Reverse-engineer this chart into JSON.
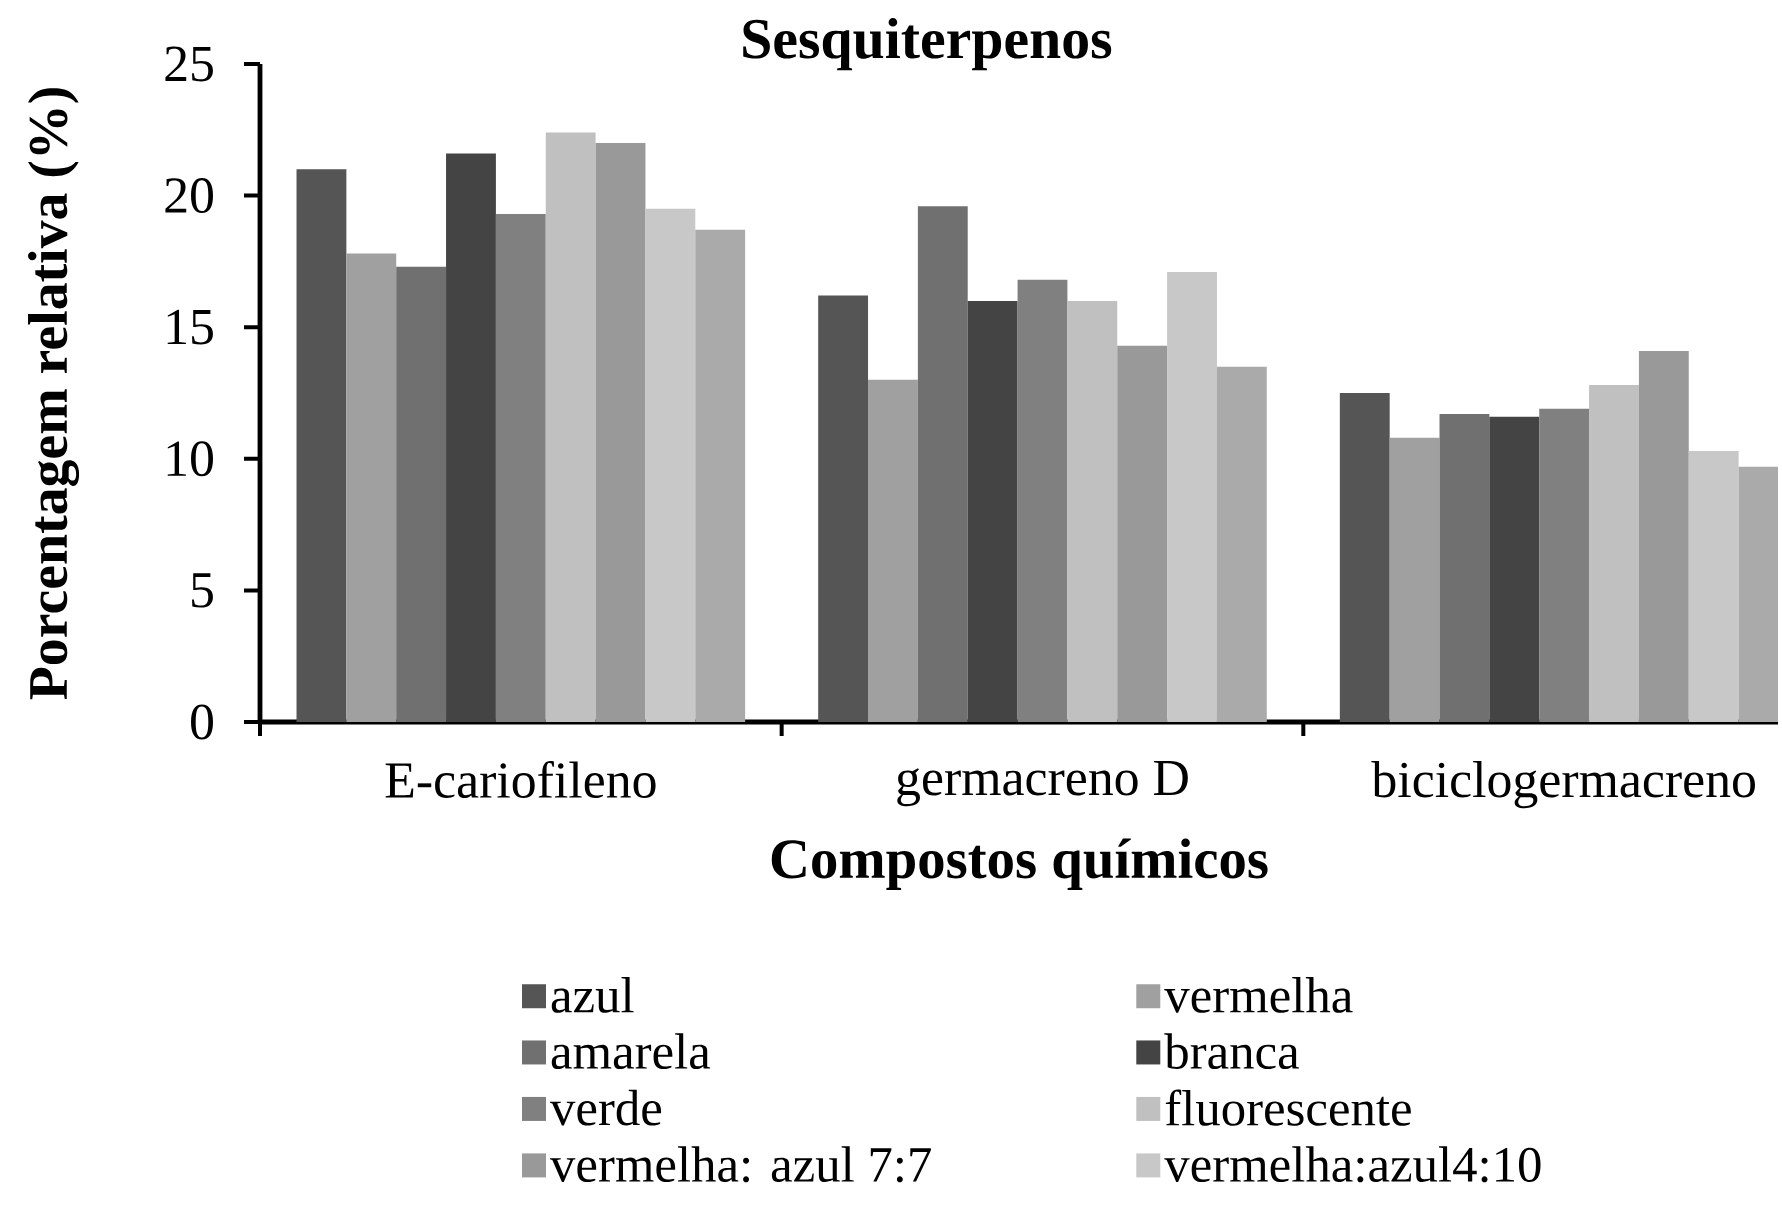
{
  "chart_data": {
    "type": "bar",
    "title": "Sesquiterpenos",
    "xlabel": "Compostos químicos",
    "ylabel": "Porcentagem relativa (%)",
    "categories": [
      "E-cariofileno",
      "germacreno D",
      "biciclogermacreno"
    ],
    "ylim": [
      0,
      25
    ],
    "yticks": [
      0,
      5,
      10,
      15,
      20,
      25
    ],
    "legend": "bottom",
    "series": [
      {
        "name": "azul",
        "color": "#555555",
        "values": [
          21.0,
          16.2,
          12.5
        ]
      },
      {
        "name": "vermelha",
        "color": "#a0a0a0",
        "values": [
          17.8,
          13.0,
          10.8
        ]
      },
      {
        "name": "amarela",
        "color": "#707070",
        "values": [
          17.3,
          19.6,
          11.7
        ]
      },
      {
        "name": "branca",
        "color": "#444444",
        "values": [
          21.6,
          16.0,
          11.6
        ]
      },
      {
        "name": "verde",
        "color": "#808080",
        "values": [
          19.3,
          16.8,
          11.9
        ]
      },
      {
        "name": "fluorescente",
        "color": "#c0c0c0",
        "values": [
          22.4,
          16.0,
          12.8
        ]
      },
      {
        "name": "vermelha: azul 7:7",
        "color": "#999999",
        "values": [
          22.0,
          14.3,
          14.1
        ]
      },
      {
        "name": "vermelha:azul4:10",
        "color": "#c8c8c8",
        "values": [
          19.5,
          17.1,
          10.3
        ]
      },
      {
        "color": "#aaaaaa",
        "values": [
          18.7,
          13.5,
          9.7
        ]
      }
    ]
  }
}
